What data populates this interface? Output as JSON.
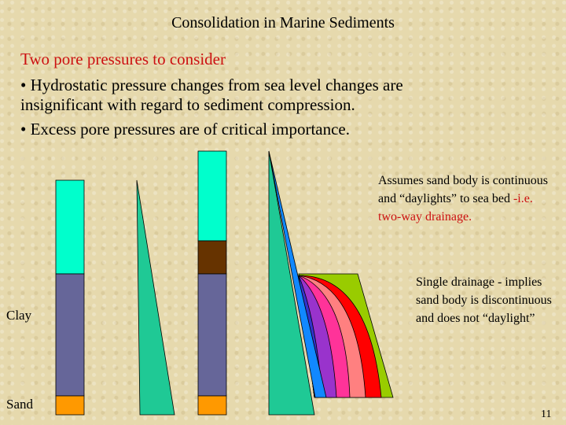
{
  "title": "Consolidation in Marine Sediments",
  "intro": "Two pore pressures to consider",
  "bullets": [
    "• Hydrostatic pressure changes from sea level changes are insignificant with regard to sediment compression.",
    "• Excess pore pressures are of critical importance."
  ],
  "notes": [
    {
      "text": "Assumes sand body is continuous and “daylights” to sea bed",
      "highlight": " -i.e. two-way drainage."
    },
    {
      "text": "Single drainage - implies sand body is discontinuous and does not “daylight”"
    }
  ],
  "labels": [
    "Clay",
    "Sand"
  ],
  "page_number": "11"
}
